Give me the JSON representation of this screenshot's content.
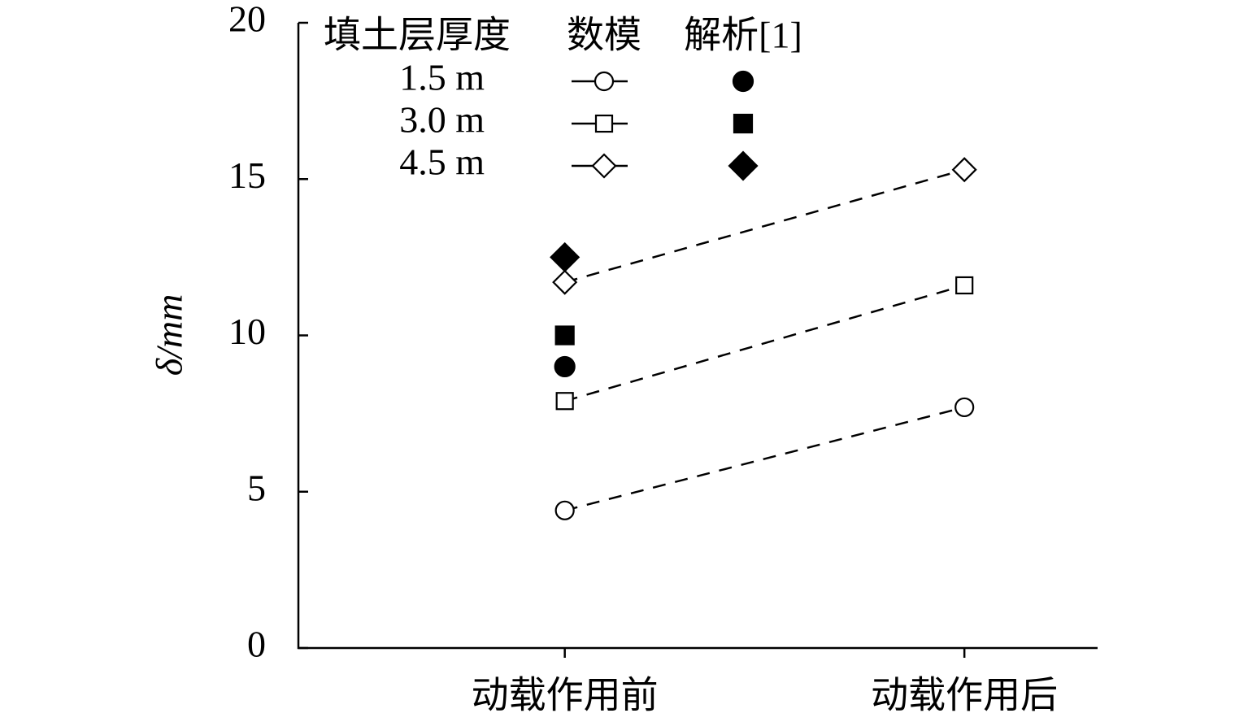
{
  "chart_data": {
    "type": "line",
    "y_label": "δ/mm",
    "categories": [
      "动载作用前",
      "动载作用后"
    ],
    "ylim": [
      0,
      20
    ],
    "yticks": [
      0,
      5,
      10,
      15,
      20
    ],
    "legend_title": "填土层厚度",
    "numerical_label": "数模",
    "analytical_label": "解析[1]",
    "color": "#000000",
    "series": [
      {
        "name": "1.5 m",
        "marker": "circle",
        "values": [
          4.4,
          7.7
        ],
        "analytical": [
          9.0,
          null
        ]
      },
      {
        "name": "3.0 m",
        "marker": "square",
        "values": [
          7.9,
          11.6
        ],
        "analytical": [
          10.0,
          null
        ]
      },
      {
        "name": "4.5 m",
        "marker": "diamond",
        "values": [
          11.7,
          15.3
        ],
        "analytical": [
          12.5,
          null
        ]
      }
    ]
  }
}
